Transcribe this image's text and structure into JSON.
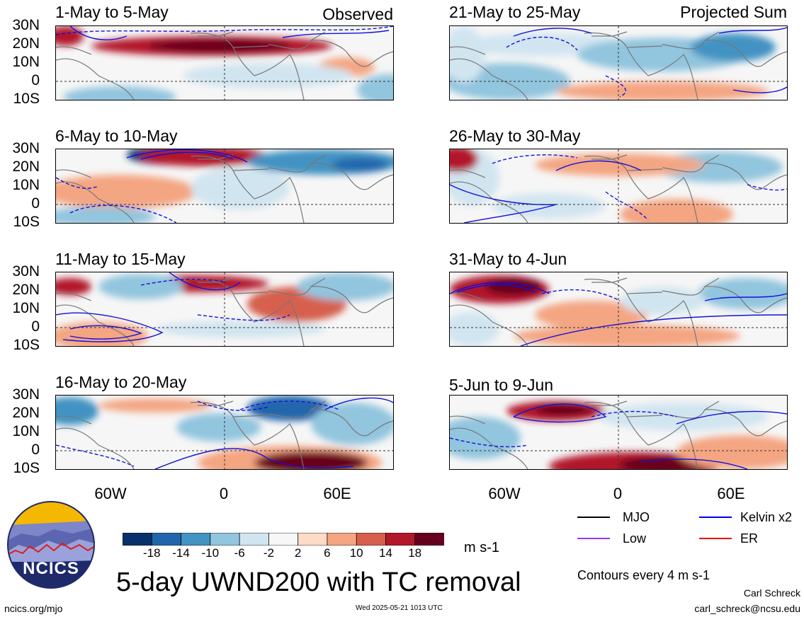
{
  "corner_labels": {
    "left": "Observed",
    "right": "Projected Sum"
  },
  "panels": [
    {
      "title": "1-May to 5-May"
    },
    {
      "title": "6-May to 10-May"
    },
    {
      "title": "11-May to 15-May"
    },
    {
      "title": "16-May to 20-May"
    },
    {
      "title": "21-May to 25-May"
    },
    {
      "title": "26-May to 30-May"
    },
    {
      "title": "31-May to 4-Jun"
    },
    {
      "title": "5-Jun to 9-Jun"
    }
  ],
  "lat_labels": [
    "30N",
    "20N",
    "10N",
    "0",
    "10S"
  ],
  "lon_labels": [
    "60W",
    "0",
    "60E"
  ],
  "colorbar": {
    "ticks": [
      "-18",
      "-14",
      "-10",
      "-6",
      "-2",
      "2",
      "6",
      "10",
      "14",
      "18"
    ],
    "colors": [
      "#08306b",
      "#2166ac",
      "#4393c3",
      "#92c5de",
      "#d1e5f0",
      "#f7f7f7",
      "#fddbc7",
      "#f4a582",
      "#d6604d",
      "#b2182b",
      "#67001f"
    ],
    "unit": "m s-1"
  },
  "legend": {
    "items": [
      {
        "label": "MJO",
        "color": "#000000"
      },
      {
        "label": "Kelvin x2",
        "color": "#0000ee"
      },
      {
        "label": "Low",
        "color": "#9933ff"
      },
      {
        "label": "ER",
        "color": "#ee0000"
      }
    ],
    "contours_note": "Contours every 4 m s-1"
  },
  "logo": {
    "text": "NCICS"
  },
  "main_title": "5-day UWND200 with TC removal",
  "footer": {
    "url": "ncics.org/mjo",
    "timestamp": "Wed 2025-05-21 1013 UTC",
    "author": "Carl Schreck",
    "email": "carl_schreck@ncsu.edu"
  }
}
